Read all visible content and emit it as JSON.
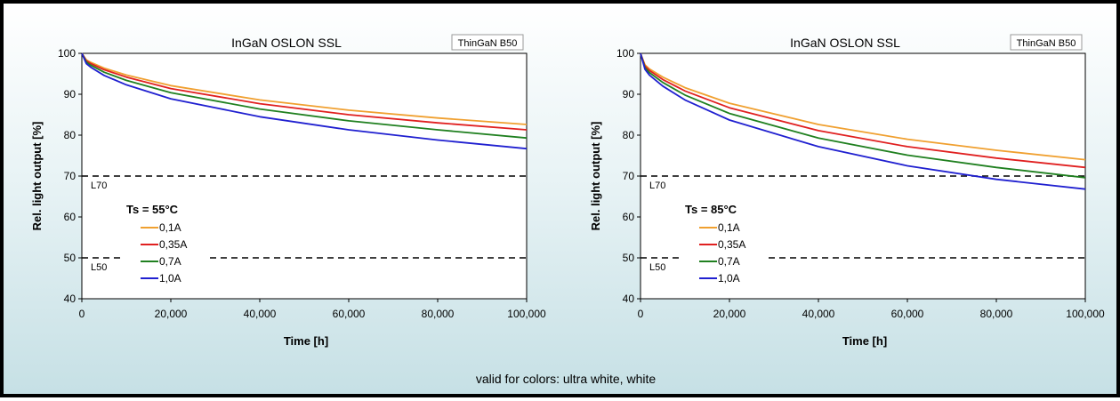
{
  "footer": {
    "note": "valid for colors: ultra white, white"
  },
  "chart_data": [
    {
      "type": "line",
      "title": "InGaN OSLON SSL",
      "badge": "ThinGaN B50",
      "xlabel": "Time [h]",
      "ylabel": "Rel. light output [%]",
      "xlim": [
        0,
        100000
      ],
      "ylim": [
        40,
        100
      ],
      "x_ticks": [
        "0",
        "20,000",
        "40,000",
        "60,000",
        "80,000",
        "100,000"
      ],
      "y_ticks": [
        "40",
        "50",
        "60",
        "70",
        "80",
        "90",
        "100"
      ],
      "grid": false,
      "legend_title": "Ts = 55°C",
      "legend_position": "lower-left",
      "reference_lines": [
        {
          "label": "L70",
          "y": 70
        },
        {
          "label": "L50",
          "y": 50
        }
      ],
      "x": [
        0,
        1000,
        2000,
        5000,
        10000,
        20000,
        40000,
        60000,
        80000,
        100000
      ],
      "series": [
        {
          "name": "0,1A",
          "color": "#f0a030",
          "values": [
            100,
            98.4,
            97.8,
            96.4,
            94.7,
            92.1,
            88.6,
            86.1,
            84.2,
            82.6
          ]
        },
        {
          "name": "0,35A",
          "color": "#e02020",
          "values": [
            100,
            98.2,
            97.5,
            96.0,
            94.2,
            91.4,
            87.7,
            85.0,
            83.0,
            81.3
          ]
        },
        {
          "name": "0,7A",
          "color": "#208020",
          "values": [
            100,
            97.9,
            97.1,
            95.4,
            93.4,
            90.4,
            86.4,
            83.5,
            81.3,
            79.3
          ]
        },
        {
          "name": "1,0A",
          "color": "#2020d0",
          "values": [
            100,
            97.5,
            96.6,
            94.6,
            92.3,
            88.9,
            84.5,
            81.3,
            78.8,
            76.7
          ]
        }
      ]
    },
    {
      "type": "line",
      "title": "InGaN OSLON SSL",
      "badge": "ThinGaN B50",
      "xlabel": "Time [h]",
      "ylabel": "Rel. light output [%]",
      "xlim": [
        0,
        100000
      ],
      "ylim": [
        40,
        100
      ],
      "x_ticks": [
        "0",
        "20,000",
        "40,000",
        "60,000",
        "80,000",
        "100,000"
      ],
      "y_ticks": [
        "40",
        "50",
        "60",
        "70",
        "80",
        "90",
        "100"
      ],
      "grid": false,
      "legend_title": "Ts = 85°C",
      "legend_position": "lower-left",
      "reference_lines": [
        {
          "label": "L70",
          "y": 70
        },
        {
          "label": "L50",
          "y": 50
        }
      ],
      "x": [
        0,
        1000,
        2000,
        5000,
        10000,
        20000,
        40000,
        60000,
        80000,
        100000
      ],
      "series": [
        {
          "name": "0,1A",
          "color": "#f0a030",
          "values": [
            100,
            97.2,
            96.2,
            94.2,
            91.6,
            87.8,
            82.6,
            79.0,
            76.3,
            74.0
          ]
        },
        {
          "name": "0,35A",
          "color": "#e02020",
          "values": [
            100,
            96.9,
            95.8,
            93.6,
            90.8,
            86.7,
            81.1,
            77.2,
            74.4,
            72.1
          ]
        },
        {
          "name": "0,7A",
          "color": "#208020",
          "values": [
            100,
            96.5,
            95.3,
            92.9,
            89.8,
            85.3,
            79.3,
            75.1,
            72.1,
            69.6
          ]
        },
        {
          "name": "1,0A",
          "color": "#2020d0",
          "values": [
            100,
            96.1,
            94.7,
            92.0,
            88.6,
            83.7,
            77.2,
            72.5,
            69.2,
            66.8
          ]
        }
      ]
    }
  ]
}
